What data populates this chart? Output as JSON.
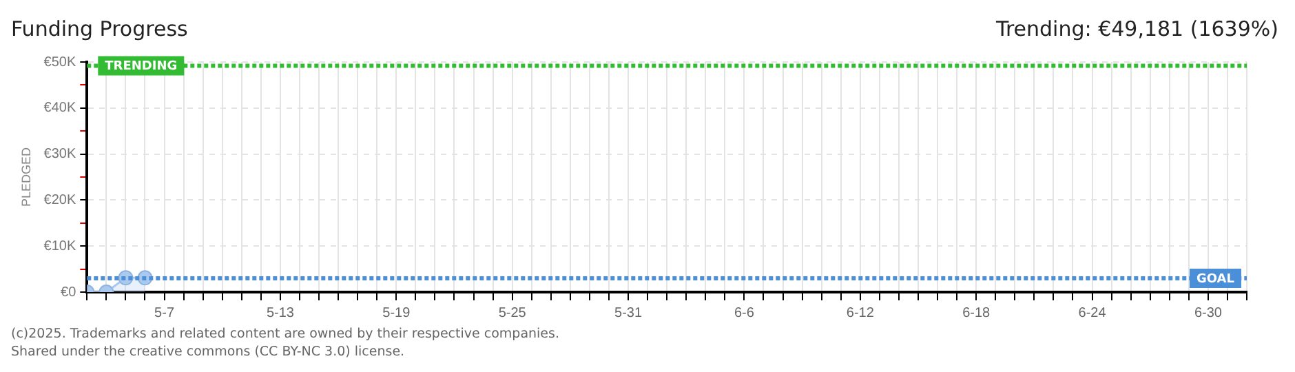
{
  "chart_data": {
    "type": "area",
    "title": "Funding Progress",
    "ylabel": "PLEDGED",
    "annotations": [
      "Trending: €49,181 (1639%)",
      "(c)2025. Trademarks and related content are owned by their respective companies.",
      "Shared under the creative commons (CC BY-NC 3.0) license."
    ],
    "x": [
      "--05-03",
      "--05-04",
      "--05-05",
      "--05-06"
    ],
    "series": [
      {
        "color": "#a9c9ef",
        "values": [
          0,
          0,
          3100,
          3100
        ]
      }
    ],
    "xlim": [
      "--05-03",
      "--07-02"
    ],
    "xticks": [
      {
        "value": "--05-03",
        "label": null
      },
      {
        "value": "--05-04",
        "label": null
      },
      {
        "value": "--05-05",
        "label": null
      },
      {
        "value": "--05-06",
        "label": null
      },
      {
        "value": "--05-07",
        "label": "5-7"
      },
      {
        "value": "--05-08",
        "label": null
      },
      {
        "value": "--05-09",
        "label": null
      },
      {
        "value": "--05-10",
        "label": null
      },
      {
        "value": "--05-11",
        "label": null
      },
      {
        "value": "--05-12",
        "label": null
      },
      {
        "value": "--05-13",
        "label": "5-13"
      },
      {
        "value": "--05-14",
        "label": null
      },
      {
        "value": "--05-15",
        "label": null
      },
      {
        "value": "--05-16",
        "label": null
      },
      {
        "value": "--05-17",
        "label": null
      },
      {
        "value": "--05-18",
        "label": null
      },
      {
        "value": "--05-19",
        "label": "5-19"
      },
      {
        "value": "--05-20",
        "label": null
      },
      {
        "value": "--05-21",
        "label": null
      },
      {
        "value": "--05-22",
        "label": null
      },
      {
        "value": "--05-23",
        "label": null
      },
      {
        "value": "--05-24",
        "label": null
      },
      {
        "value": "--05-25",
        "label": "5-25"
      },
      {
        "value": "--05-26",
        "label": null
      },
      {
        "value": "--05-27",
        "label": null
      },
      {
        "value": "--05-28",
        "label": null
      },
      {
        "value": "--05-29",
        "label": null
      },
      {
        "value": "--05-30",
        "label": null
      },
      {
        "value": "--05-31",
        "label": "5-31"
      },
      {
        "value": "--06-01",
        "label": null
      },
      {
        "value": "--06-02",
        "label": null
      },
      {
        "value": "--06-03",
        "label": null
      },
      {
        "value": "--06-04",
        "label": null
      },
      {
        "value": "--06-05",
        "label": null
      },
      {
        "value": "--06-06",
        "label": "6-6"
      },
      {
        "value": "--06-07",
        "label": null
      },
      {
        "value": "--06-08",
        "label": null
      },
      {
        "value": "--06-09",
        "label": null
      },
      {
        "value": "--06-10",
        "label": null
      },
      {
        "value": "--06-11",
        "label": null
      },
      {
        "value": "--06-12",
        "label": "6-12"
      },
      {
        "value": "--06-13",
        "label": null
      },
      {
        "value": "--06-14",
        "label": null
      },
      {
        "value": "--06-15",
        "label": null
      },
      {
        "value": "--06-16",
        "label": null
      },
      {
        "value": "--06-17",
        "label": null
      },
      {
        "value": "--06-18",
        "label": "6-18"
      },
      {
        "value": "--06-19",
        "label": null
      },
      {
        "value": "--06-20",
        "label": null
      },
      {
        "value": "--06-21",
        "label": null
      },
      {
        "value": "--06-22",
        "label": null
      },
      {
        "value": "--06-23",
        "label": null
      },
      {
        "value": "--06-24",
        "label": "6-24"
      },
      {
        "value": "--06-25",
        "label": null
      },
      {
        "value": "--06-26",
        "label": null
      },
      {
        "value": "--06-27",
        "label": null
      },
      {
        "value": "--06-28",
        "label": null
      },
      {
        "value": "--06-29",
        "label": null
      },
      {
        "value": "--06-30",
        "label": "6-30"
      },
      {
        "value": "--07-01",
        "label": null
      },
      {
        "value": "--07-02",
        "label": null
      }
    ],
    "ylim": [
      0,
      50000
    ],
    "yticks": [
      {
        "value": 0,
        "label": "€0"
      },
      {
        "value": 5000,
        "label": null
      },
      {
        "value": 10000,
        "label": "€10K"
      },
      {
        "value": 15000,
        "label": null
      },
      {
        "value": 20000,
        "label": "€20K"
      },
      {
        "value": 25000,
        "label": null
      },
      {
        "value": 30000,
        "label": "€30K"
      },
      {
        "value": 35000,
        "label": null
      },
      {
        "value": 40000,
        "label": "€40K"
      },
      {
        "value": 45000,
        "label": null
      },
      {
        "value": 50000,
        "label": "€50K"
      }
    ],
    "ref_lines": [
      {
        "axis": "y",
        "value": 49181,
        "label": "TRENDING",
        "color": "#33bb33",
        "line_style": "dotted"
      },
      {
        "axis": "y",
        "value": 3000,
        "label": "GOAL",
        "color": "#4a8fd8",
        "line_style": "dotted"
      }
    ],
    "grid": true,
    "marker": "circle",
    "legend": false
  }
}
